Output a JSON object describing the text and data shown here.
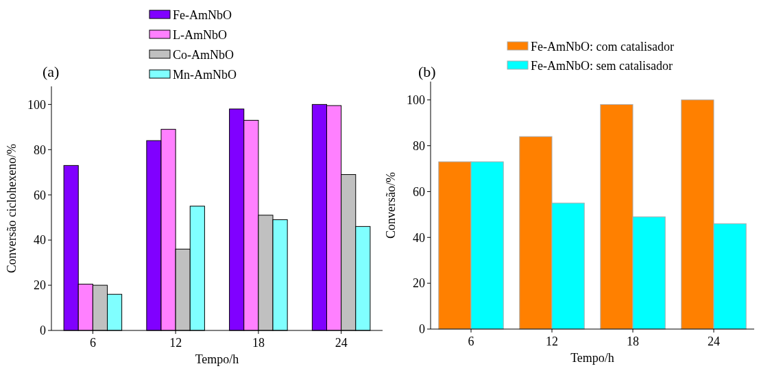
{
  "chart_data": [
    {
      "type": "bar",
      "title": "(a)",
      "xlabel": "Tempo/h",
      "ylabel": "Conversão ciclohexeno/%",
      "categories": [
        "6",
        "12",
        "18",
        "24"
      ],
      "ylim": [
        0,
        108
      ],
      "yticks": [
        0,
        20,
        40,
        60,
        80,
        100
      ],
      "legend": "top",
      "series": [
        {
          "name": "Fe-AmNbO",
          "color": "#8000ff",
          "values": [
            73,
            84,
            98,
            100
          ]
        },
        {
          "name": "L-AmNbO",
          "color": "#ff80ff",
          "values": [
            20.5,
            89,
            93,
            99.5
          ]
        },
        {
          "name": "Co-AmNbO",
          "color": "#c0c0c0",
          "values": [
            20,
            36,
            51,
            69
          ]
        },
        {
          "name": "Mn-AmNbO",
          "color": "#80ffff",
          "values": [
            16,
            55,
            49,
            46
          ]
        }
      ]
    },
    {
      "type": "bar",
      "title": "(b)",
      "xlabel": "Tempo/h",
      "ylabel": "Conversão/%",
      "categories": [
        "6",
        "12",
        "18",
        "24"
      ],
      "ylim": [
        0,
        108
      ],
      "yticks": [
        0,
        20,
        40,
        60,
        80,
        100
      ],
      "legend": "top",
      "series": [
        {
          "name": "Fe-AmNbO: com catalisador",
          "color": "#ff8000",
          "values": [
            73,
            84,
            98,
            100
          ]
        },
        {
          "name": "Fe-AmNbO: sem catalisador",
          "color": "#00ffff",
          "values": [
            73,
            55,
            49,
            46
          ]
        }
      ]
    }
  ]
}
